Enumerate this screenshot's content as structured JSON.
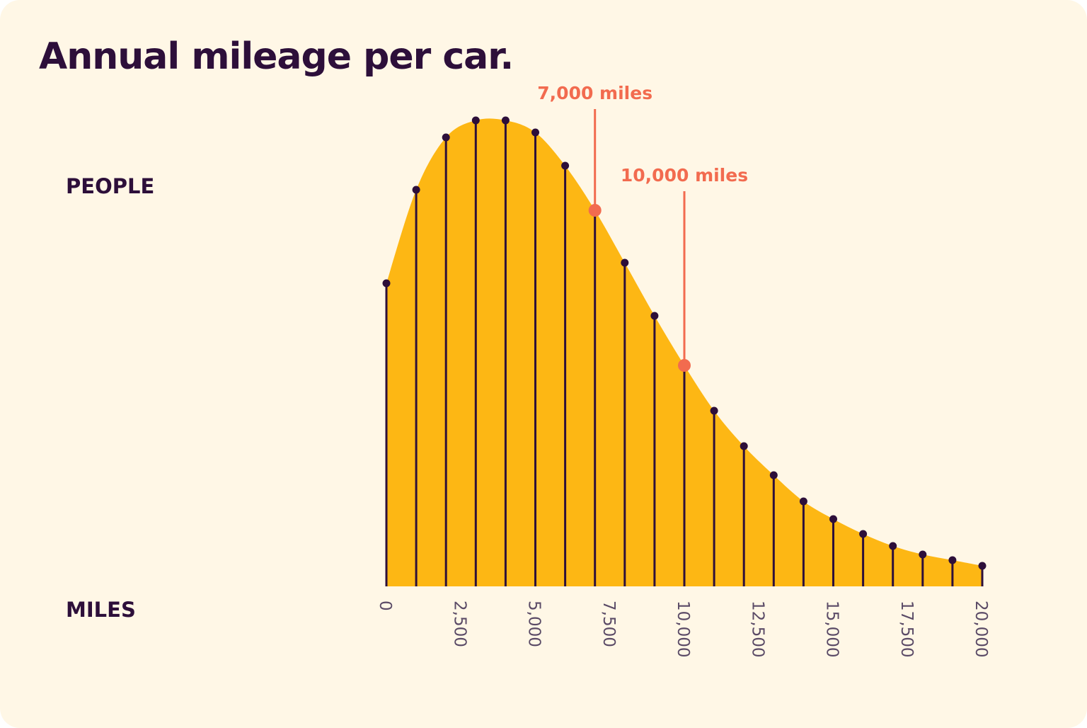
{
  "chart_data": {
    "type": "area",
    "title": "Annual mileage per car.",
    "ylabel": "PEOPLE",
    "xlabel": "MILES",
    "x": [
      0,
      1000,
      2000,
      3000,
      4000,
      5000,
      6000,
      7000,
      8000,
      9000,
      10000,
      11000,
      12000,
      13000,
      14000,
      15000,
      16000,
      17000,
      18000,
      19000,
      20000
    ],
    "values": [
      428,
      560,
      634,
      658,
      658,
      641,
      594,
      531,
      457,
      382,
      312,
      248,
      198,
      157,
      120,
      95,
      74,
      57,
      45,
      37,
      29
    ],
    "xlim": [
      0,
      20000
    ],
    "ylim": [
      0,
      700
    ],
    "xticks": [
      0,
      2500,
      5000,
      7500,
      10000,
      12500,
      15000,
      17500,
      20000
    ],
    "xtick_labels": [
      "0",
      "2,500",
      "5,000",
      "7,500",
      "10,000",
      "12,500",
      "15,000",
      "17,500",
      "20,000"
    ],
    "grid": false,
    "annotations": [
      {
        "x": 7000,
        "label": "7,000 miles"
      },
      {
        "x": 10000,
        "label": "10,000 miles"
      }
    ],
    "colors": {
      "fill": "#fdb714",
      "stem": "#2d0f3a",
      "annotation": "#f26b4f",
      "background": "#fff7e6",
      "tick_text": "#5a4a66"
    }
  }
}
